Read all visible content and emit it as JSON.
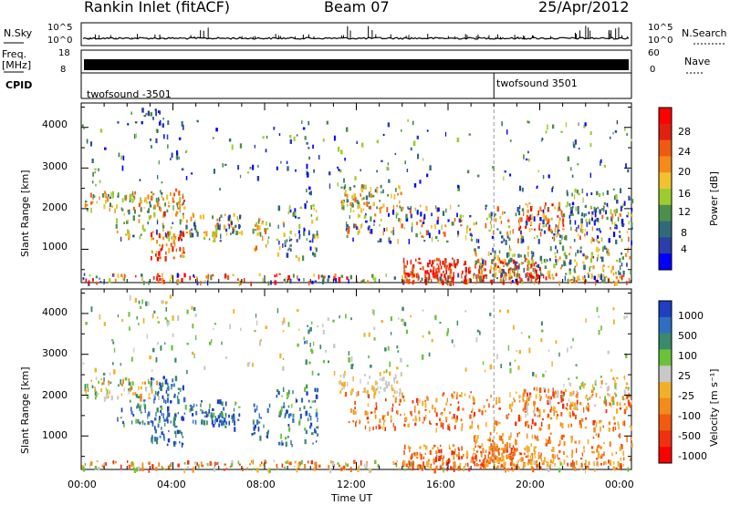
{
  "header": {
    "station": "Rankin Inlet (fitACF)",
    "beam": "Beam 07",
    "date": "25/Apr/2012"
  },
  "top_strips": {
    "nsky_label": "N.Sky",
    "nsky_ticks": [
      "10^5",
      "10^0"
    ],
    "nsearch_label": "N.Search",
    "nsearch_ticks": [
      "10^5",
      "10^0"
    ],
    "freq_label": "Freq.",
    "freq_unit": "[MHz]",
    "freq_ticks": [
      "18",
      "8"
    ],
    "nave_label": "Nave",
    "nave_ticks": [
      "60",
      "0"
    ],
    "cpid_label": "CPID",
    "cpid_segments": [
      "twofsound -3501",
      "twofsound 3501"
    ]
  },
  "axes": {
    "ylabel": "Slant Range [km]",
    "xlabel": "Time UT",
    "y_ticks": [
      "1000",
      "2000",
      "3000",
      "4000"
    ],
    "x_ticks": [
      "00:00",
      "04:00",
      "08:00",
      "12:00",
      "16:00",
      "20:00",
      "00:00"
    ]
  },
  "colorbars": {
    "power_label": "Power [dB]",
    "power_ticks": [
      "4",
      "8",
      "12",
      "16",
      "20",
      "24",
      "28"
    ],
    "power_colors": [
      "#0000ff",
      "#2c3ea8",
      "#2f6a7a",
      "#4c8f4c",
      "#9ccc30",
      "#f2c12e",
      "#f58a18",
      "#ef5a12",
      "#e02010",
      "#ff0000"
    ],
    "velocity_label": "Velocity [m s⁻¹]",
    "velocity_ticks": [
      "1000",
      "500",
      "100",
      "25",
      "-25",
      "-100",
      "-500",
      "-1000"
    ],
    "velocity_colors": [
      "#1e3fbf",
      "#2f6fc2",
      "#3b8b6a",
      "#6cc13a",
      "#c8c8c8",
      "#f2b02a",
      "#f38a1a",
      "#f25a12",
      "#f03010",
      "#ff0000"
    ]
  },
  "chart_data": {
    "type": "heatmap",
    "panels": [
      {
        "name": "Power",
        "unit": "dB",
        "range": [
          0,
          30
        ]
      },
      {
        "name": "Velocity",
        "unit": "m s^-1",
        "range": [
          -1000,
          1000
        ]
      }
    ],
    "x": [
      "00:00",
      "04:00",
      "08:00",
      "12:00",
      "16:00",
      "20:00",
      "00:00"
    ],
    "xlabel": "Time UT",
    "ylabel": "Slant Range [km]",
    "ylim": [
      180,
      4600
    ],
    "cpid_switch_time": "18:00"
  }
}
